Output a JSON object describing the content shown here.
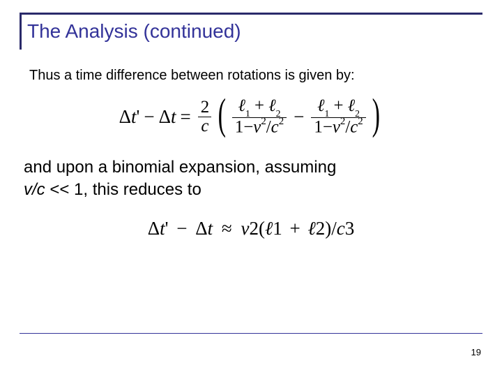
{
  "title": "The Analysis (continued)",
  "intro_text": "Thus a time difference between rotations is given by:",
  "mid_text_1": "and upon a binomial expansion, assuming",
  "mid_text_2a": "v/c",
  "mid_text_2b": " << 1, this reduces to",
  "page_number": "19",
  "colors": {
    "title_border": "#2a2a6a",
    "title_text": "#333399",
    "bottom_rule": "#333399",
    "background": "#ffffff",
    "body_text": "#000000"
  },
  "typography": {
    "title_fontsize_pt": 21,
    "intro_fontsize_pt": 15,
    "midtext_fontsize_pt": 18,
    "equation_fontsize_pt": 20,
    "equation_font": "Times New Roman",
    "body_font": "Arial"
  },
  "equation1": {
    "lhs": "Δt' − Δt",
    "rhs_coeff_num": "2",
    "rhs_coeff_den": "c",
    "term1_num": "ℓ₁ + ℓ₂",
    "term1_den": "1 − v²/c²",
    "term2_num": "ℓ₁ + ℓ₂",
    "term2_den": "1 − v²/c²",
    "between_op": "−"
  },
  "equation2": {
    "expr": "Δt' − Δt ≈ v²(ℓ₁ + ℓ₂)/c³"
  }
}
